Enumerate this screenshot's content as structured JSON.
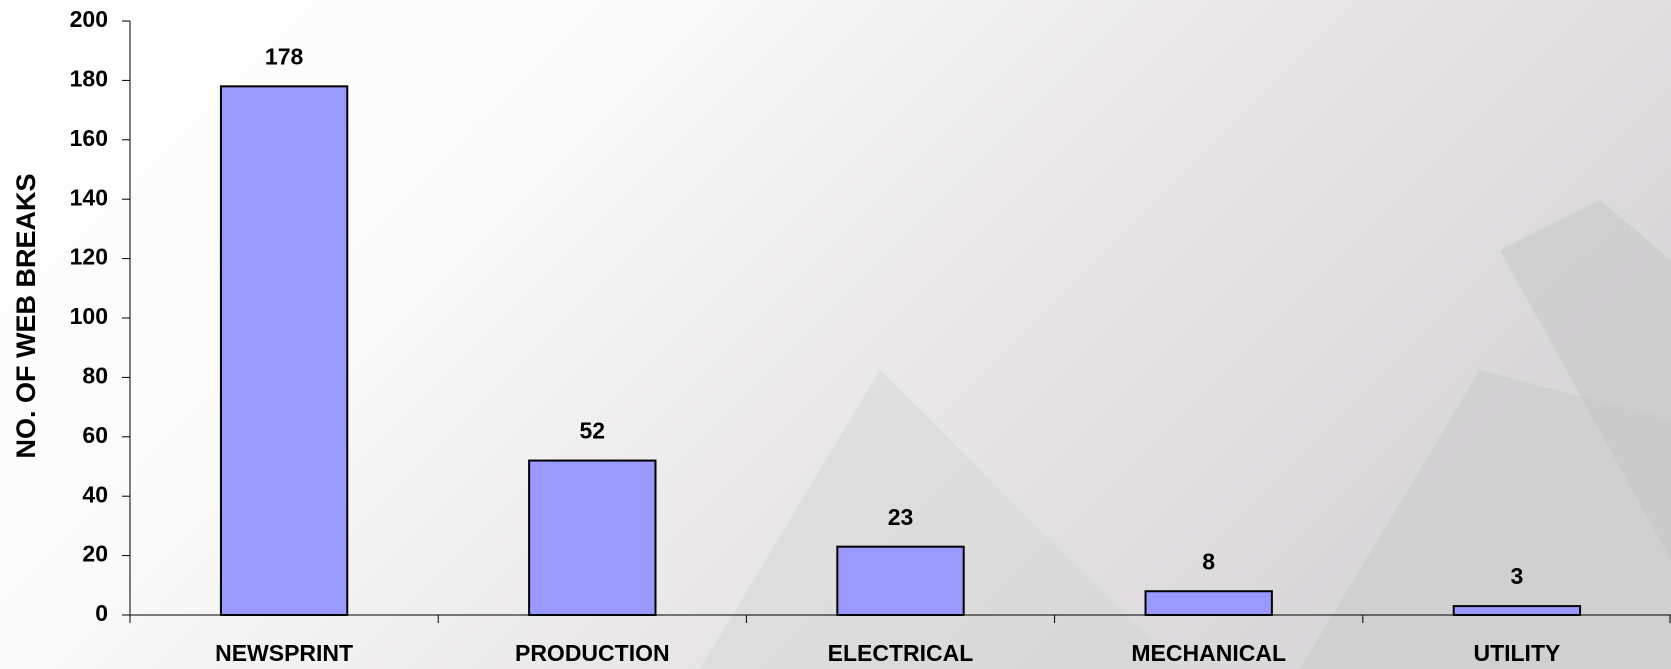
{
  "chart_data": {
    "type": "bar",
    "y_label": "NO. OF WEB BREAKS",
    "categories": [
      "NEWSPRINT",
      "PRODUCTION",
      "ELECTRICAL",
      "MECHANICAL",
      "UTILITY"
    ],
    "values": [
      178,
      52,
      23,
      8,
      3
    ],
    "color": "#9999ff",
    "ylim": [
      0,
      200
    ],
    "yticks": [
      0,
      20,
      40,
      60,
      80,
      100,
      120,
      140,
      160,
      180,
      200
    ],
    "grid": false
  }
}
